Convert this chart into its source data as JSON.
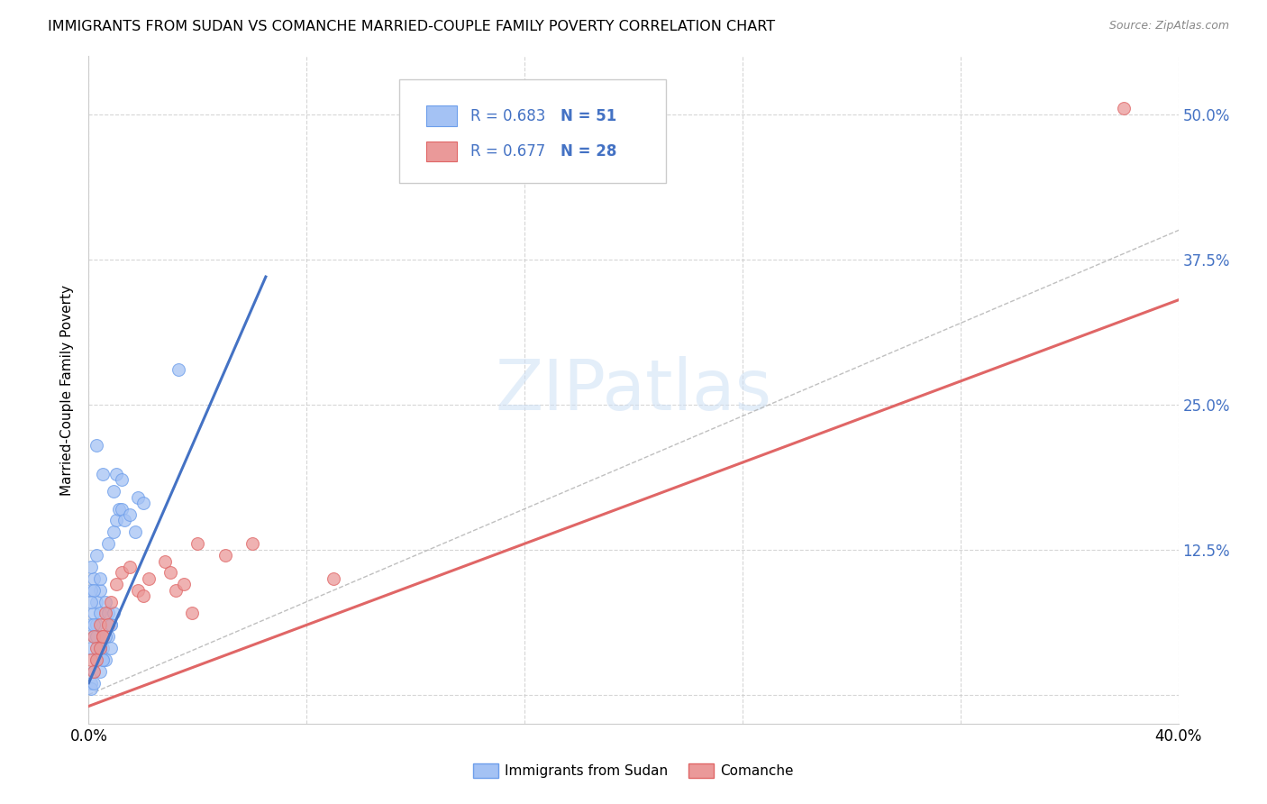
{
  "title": "IMMIGRANTS FROM SUDAN VS COMANCHE MARRIED-COUPLE FAMILY POVERTY CORRELATION CHART",
  "source": "Source: ZipAtlas.com",
  "ylabel": "Married-Couple Family Poverty",
  "r_sudan": 0.683,
  "n_sudan": 51,
  "r_comanche": 0.677,
  "n_comanche": 28,
  "color_sudan_fill": "#a4c2f4",
  "color_sudan_edge": "#6d9eeb",
  "color_comanche_fill": "#ea9999",
  "color_comanche_edge": "#e06666",
  "color_sudan_line": "#4472c4",
  "color_comanche_line": "#e06666",
  "color_diagonal": "#b0b0b0",
  "xmin": 0.0,
  "xmax": 0.4,
  "ymin": -0.025,
  "ymax": 0.55,
  "watermark": "ZIPatlas",
  "sudan_line_x0": 0.0,
  "sudan_line_y0": 0.01,
  "sudan_line_x1": 0.065,
  "sudan_line_y1": 0.36,
  "comanche_line_x0": 0.0,
  "comanche_line_y0": -0.01,
  "comanche_line_x1": 0.4,
  "comanche_line_y1": 0.34
}
